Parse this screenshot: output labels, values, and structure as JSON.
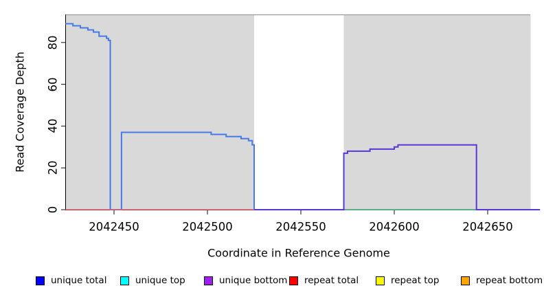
{
  "chart_data": {
    "type": "line",
    "title": "",
    "xlabel": "Coordinate in Reference Genome",
    "ylabel": "Read Coverage Depth",
    "xlim": [
      2042424,
      2042673
    ],
    "ylim": [
      0,
      93
    ],
    "x_ticks": [
      2042450,
      2042500,
      2042550,
      2042600,
      2042650
    ],
    "y_ticks": [
      0,
      20,
      40,
      60,
      80
    ],
    "grid": false,
    "panel_color": "#d9d9d9",
    "panel_border_color": "#9b9b9b",
    "background_regions": [
      {
        "name": "covered-region-left",
        "x0": 2042424,
        "x1": 2042525,
        "color": "#d9d9d9"
      },
      {
        "name": "uncovered-gap",
        "x0": 2042525,
        "x1": 2042573,
        "color": "#ffffff"
      },
      {
        "name": "covered-region-right",
        "x0": 2042573,
        "x1": 2042673,
        "color": "#d9d9d9"
      }
    ],
    "series": [
      {
        "name": "unique total",
        "color": "#4679e8",
        "width": 2,
        "steps": [
          [
            2042424,
            89
          ],
          [
            2042428,
            88
          ],
          [
            2042432,
            87
          ],
          [
            2042436,
            86
          ],
          [
            2042439,
            85
          ],
          [
            2042442,
            83
          ],
          [
            2042446,
            82
          ],
          [
            2042447,
            81
          ],
          [
            2042448,
            0
          ],
          [
            2042454,
            37
          ],
          [
            2042502,
            36
          ],
          [
            2042510,
            35
          ],
          [
            2042518,
            34
          ],
          [
            2042522,
            33
          ],
          [
            2042524,
            31
          ],
          [
            2042525,
            0
          ],
          [
            2042673,
            0
          ]
        ]
      },
      {
        "name": "repeat total",
        "color": "#e3606e",
        "width": 1.6,
        "steps": [
          [
            2042424,
            0
          ],
          [
            2042525,
            0
          ]
        ]
      },
      {
        "name": "baseline-overlap-green",
        "color": "#68ba6b",
        "width": 1.6,
        "steps": [
          [
            2042573,
            0
          ],
          [
            2042673,
            0
          ]
        ]
      },
      {
        "name": "unique bottom",
        "color": "#5936d6",
        "width": 2,
        "steps": [
          [
            2042525,
            0
          ],
          [
            2042573,
            27
          ],
          [
            2042575,
            28
          ],
          [
            2042587,
            29
          ],
          [
            2042600,
            30
          ],
          [
            2042602,
            31
          ],
          [
            2042644,
            0
          ],
          [
            2042678,
            0
          ]
        ]
      }
    ]
  },
  "axes": {
    "x_title": "Coordinate in Reference Genome",
    "y_title": "Read Coverage Depth"
  },
  "legend": {
    "items": [
      {
        "label": "unique total",
        "color": "#0000ff"
      },
      {
        "label": "unique top",
        "color": "#00ffff"
      },
      {
        "label": "unique bottom",
        "color": "#a020f0"
      },
      {
        "label": "repeat total",
        "color": "#ff0000"
      },
      {
        "label": "repeat top",
        "color": "#ffff00"
      },
      {
        "label": "repeat bottom",
        "color": "#ffa500"
      }
    ]
  }
}
